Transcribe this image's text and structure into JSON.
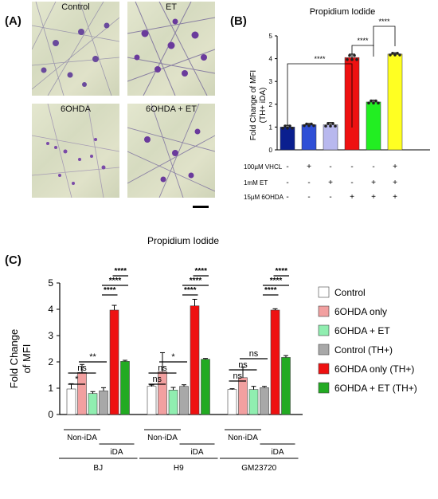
{
  "panels": {
    "a": "(A)",
    "b": "(B)",
    "c": "(C)"
  },
  "images": [
    {
      "caption": "Control"
    },
    {
      "caption": "ET"
    },
    {
      "caption": "6OHDA"
    },
    {
      "caption": "6OHDA + ET"
    }
  ],
  "colors": {
    "navy": "#0a1f8f",
    "blue": "#2f4fd6",
    "lavender": "#b8b8ee",
    "red": "#ee1111",
    "green": "#22ee22",
    "yellow": "#ffff22",
    "c_control": "#ffffff",
    "c_6ohda": "#f2a0a0",
    "c_6ohda_et": "#90eeb0",
    "c_control_th": "#a8a8a8",
    "c_6ohda_th": "#ee1111",
    "c_6ohda_et_th": "#22aa22"
  },
  "chart_data": [
    {
      "type": "bar",
      "title": "Propidium Iodide",
      "ylabel_line1": "Fold Change of MFI",
      "ylabel_line2": "(TH+ iDA)",
      "ylim": [
        0,
        5
      ],
      "yticks": [
        "0",
        "1",
        "2",
        "3",
        "4",
        "5"
      ],
      "values": [
        1.0,
        1.1,
        1.1,
        4.05,
        2.1,
        4.2
      ],
      "errors": [
        0.08,
        0.06,
        0.1,
        0.15,
        0.08,
        0.06
      ],
      "treatment_rows": [
        {
          "label": "100µM VHCL",
          "marks": [
            "-",
            "+",
            "-",
            "-",
            "-",
            "+"
          ]
        },
        {
          "label": "1mM ET",
          "marks": [
            "-",
            "-",
            "+",
            "-",
            "+",
            "+"
          ]
        },
        {
          "label": "15µM 6OHDA",
          "marks": [
            "-",
            "-",
            "-",
            "+",
            "+",
            "+"
          ]
        }
      ],
      "significance": [
        "****",
        "****",
        "****"
      ]
    },
    {
      "type": "bar",
      "title": "Propidium Iodide",
      "ylabel_line1": "Fold Change",
      "ylabel_line2": "of MFI",
      "ylim": [
        0,
        5
      ],
      "yticks": [
        "0",
        "1",
        "2",
        "3",
        "4",
        "5"
      ],
      "series": [
        {
          "name": "Control",
          "values": [
            0.97,
            1.07,
            0.95
          ],
          "errors": [
            0.2,
            0.05,
            0.03
          ]
        },
        {
          "name": "6OHDA only",
          "values": [
            1.6,
            1.63,
            1.4
          ],
          "errors": [
            0.3,
            0.72,
            0.4
          ]
        },
        {
          "name": "6OHDA + ET",
          "values": [
            0.8,
            0.93,
            0.95
          ],
          "errors": [
            0.07,
            0.1,
            0.12
          ]
        },
        {
          "name": "Control (TH+)",
          "values": [
            0.9,
            1.07,
            1.02
          ],
          "errors": [
            0.12,
            0.06,
            0.05
          ]
        },
        {
          "name": "6OHDA only (TH+)",
          "values": [
            3.97,
            4.13,
            3.97
          ],
          "errors": [
            0.18,
            0.25,
            0.05
          ]
        },
        {
          "name": "6OHDA + ET (TH+)",
          "values": [
            2.02,
            2.1,
            2.17
          ],
          "errors": [
            0.04,
            0.03,
            0.07
          ]
        }
      ],
      "groups": [
        "BJ",
        "H9",
        "GM23720"
      ],
      "sub_labels": {
        "non_ida": "Non-iDA",
        "ida": "iDA"
      },
      "sig_non_ida": [
        [
          "*",
          "ns",
          "**"
        ],
        [
          "ns",
          "ns",
          "*"
        ],
        [
          "ns",
          "ns",
          "ns"
        ]
      ],
      "sig_ida": [
        "****",
        "****",
        "****"
      ]
    }
  ]
}
